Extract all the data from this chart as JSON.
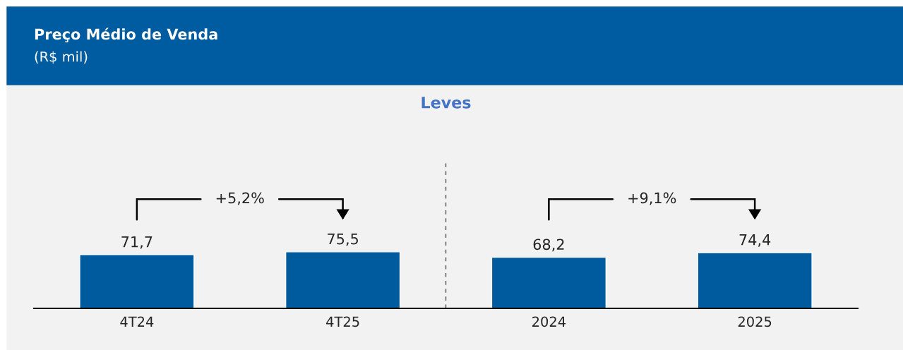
{
  "chart_data": {
    "type": "bar",
    "title": "Preço Médio de Venda",
    "subtitle": "(R$ mil)",
    "categories": [
      "4T24",
      "4T25",
      "2024",
      "2025"
    ],
    "values": [
      71.7,
      75.5,
      68.2,
      74.4
    ],
    "value_labels": [
      "71,7",
      "75,5",
      "68,2",
      "74,4"
    ],
    "color": "#005a9e",
    "annotations": [
      "Leves",
      "+5,2%",
      "+9,1%"
    ],
    "grid": false,
    "legend": false
  }
}
